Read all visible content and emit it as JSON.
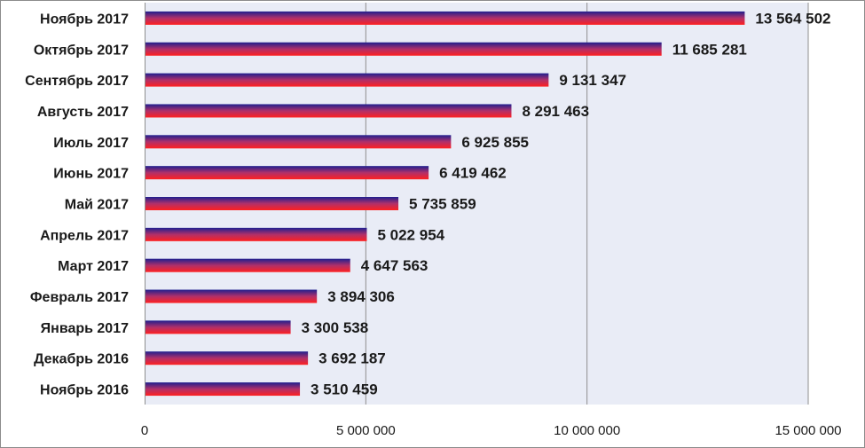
{
  "chart_data": {
    "type": "bar",
    "orientation": "horizontal",
    "categories": [
      "Ноябрь 2017",
      "Октябрь 2017",
      "Сентябрь 2017",
      "Августь 2017",
      "Июль 2017",
      "Июнь 2017",
      "Май 2017",
      "Апрель 2017",
      "Март 2017",
      "Февраль 2017",
      "Январь 2017",
      "Декабрь 2016",
      "Ноябрь 2016"
    ],
    "values": [
      13564502,
      11685281,
      9131347,
      8291463,
      6925855,
      6419462,
      5735859,
      5022954,
      4647563,
      3894306,
      3300538,
      3692187,
      3510459
    ],
    "data_labels": [
      "13 564 502",
      "11 685 281",
      "9 131 347",
      "8 291 463",
      "6 925 855",
      "6 419 462",
      "5 735 859",
      "5 022 954",
      "4 647 563",
      "3 894 306",
      "3 300 538",
      "3 692 187",
      "3 510 459"
    ],
    "xlim": [
      0,
      15000000
    ],
    "x_ticks": [
      0,
      5000000,
      10000000,
      15000000
    ],
    "x_tick_labels": [
      "0",
      "5 000 000",
      "10 000 000",
      "15 000 000"
    ],
    "grid": "vertical",
    "legend": "none",
    "colors": {
      "plot_background": "#e9ecf6",
      "gridline": "#8f8f8f",
      "bar_top": "#1f1f8f",
      "bar_mid": "#b0306a",
      "bar_bottom": "#ff2020"
    }
  }
}
